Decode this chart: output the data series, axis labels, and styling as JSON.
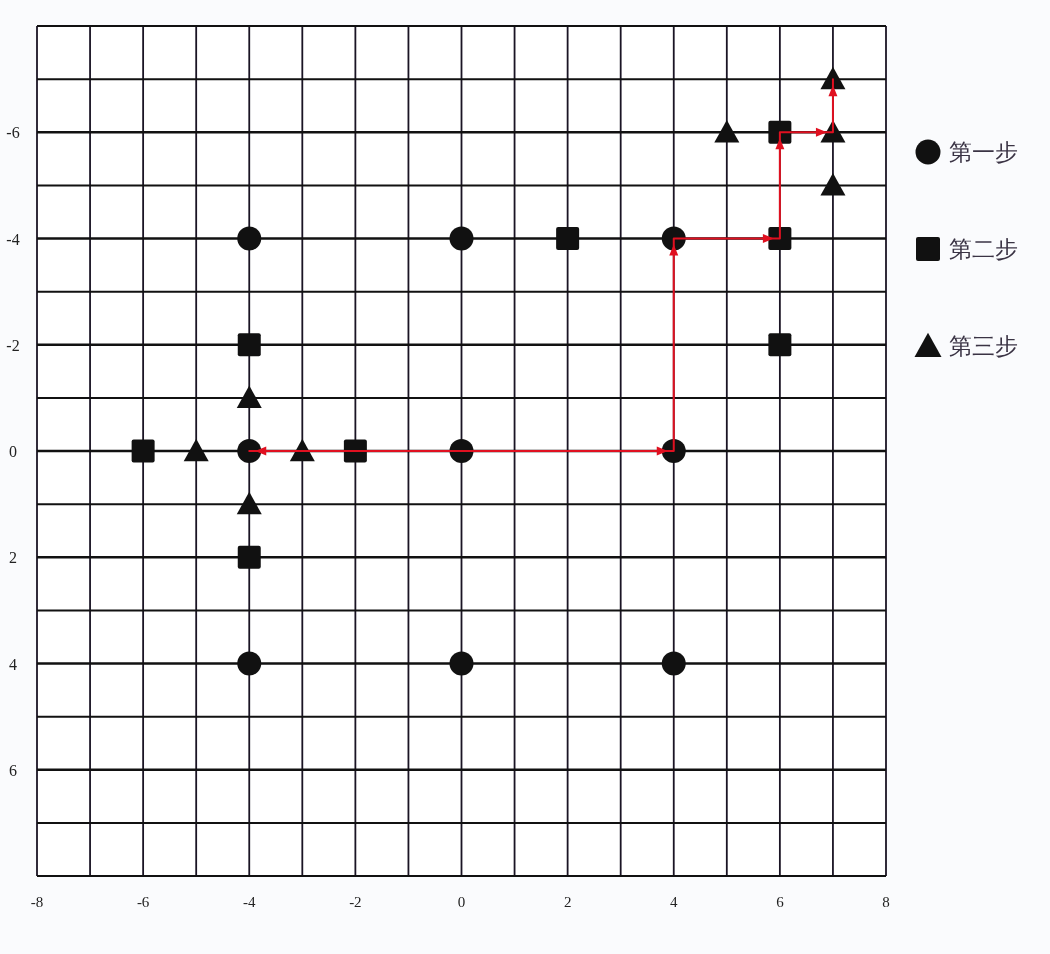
{
  "chart_data": {
    "type": "scatter",
    "xlim": [
      -8,
      8
    ],
    "ylim": [
      8,
      -8
    ],
    "xticks": [
      -8,
      {
        "value": -7,
        "label": null
      },
      -6,
      {
        "value": -5,
        "label": null
      },
      -4,
      {
        "value": -3,
        "label": null
      },
      -2,
      {
        "value": -1,
        "label": null
      },
      0,
      {
        "value": 1,
        "label": null
      },
      2,
      {
        "value": 3,
        "label": null
      },
      4,
      {
        "value": 5,
        "label": null
      },
      6,
      {
        "value": 7,
        "label": null
      },
      8
    ],
    "yticks": [
      {
        "value": -8,
        "label": null
      },
      {
        "value": -7,
        "label": null
      },
      -6,
      {
        "value": -5,
        "label": null
      },
      -4,
      {
        "value": -3,
        "label": null
      },
      -2,
      {
        "value": -1,
        "label": null
      },
      0,
      {
        "value": 1,
        "label": null
      },
      2,
      {
        "value": 3,
        "label": null
      },
      4,
      {
        "value": 5,
        "label": null
      },
      6,
      {
        "value": 7,
        "label": null
      },
      {
        "value": 8,
        "label": null
      }
    ],
    "grid": true,
    "legend": "right",
    "series": [
      {
        "name": "第一步",
        "color": "#111111",
        "marker": "circle",
        "x": [
          -4,
          0,
          4,
          -4,
          0,
          4,
          -4,
          0,
          4
        ],
        "values": [
          -4,
          -4,
          -4,
          0,
          0,
          0,
          4,
          4,
          4
        ]
      },
      {
        "name": "第二步",
        "color": "#111111",
        "marker": "square",
        "x": [
          2,
          6,
          6,
          6,
          -4,
          -4,
          -6,
          -2
        ],
        "values": [
          -4,
          -4,
          -6,
          -2,
          -2,
          2,
          0,
          0
        ]
      },
      {
        "name": "第三步",
        "color": "#111111",
        "marker": "triangle",
        "x": [
          5,
          7,
          7,
          7,
          -4,
          -4,
          -5,
          -3
        ],
        "values": [
          -6,
          -6,
          -7,
          -5,
          -1,
          1,
          0,
          0
        ]
      },
      {
        "type": "line",
        "color": "#e01020",
        "marker": "none",
        "line_style": "solid",
        "x": [
          -4,
          4,
          4,
          6,
          6,
          7,
          7
        ],
        "values": [
          0,
          0,
          -4,
          -4,
          -6,
          -6,
          -7
        ]
      }
    ]
  }
}
